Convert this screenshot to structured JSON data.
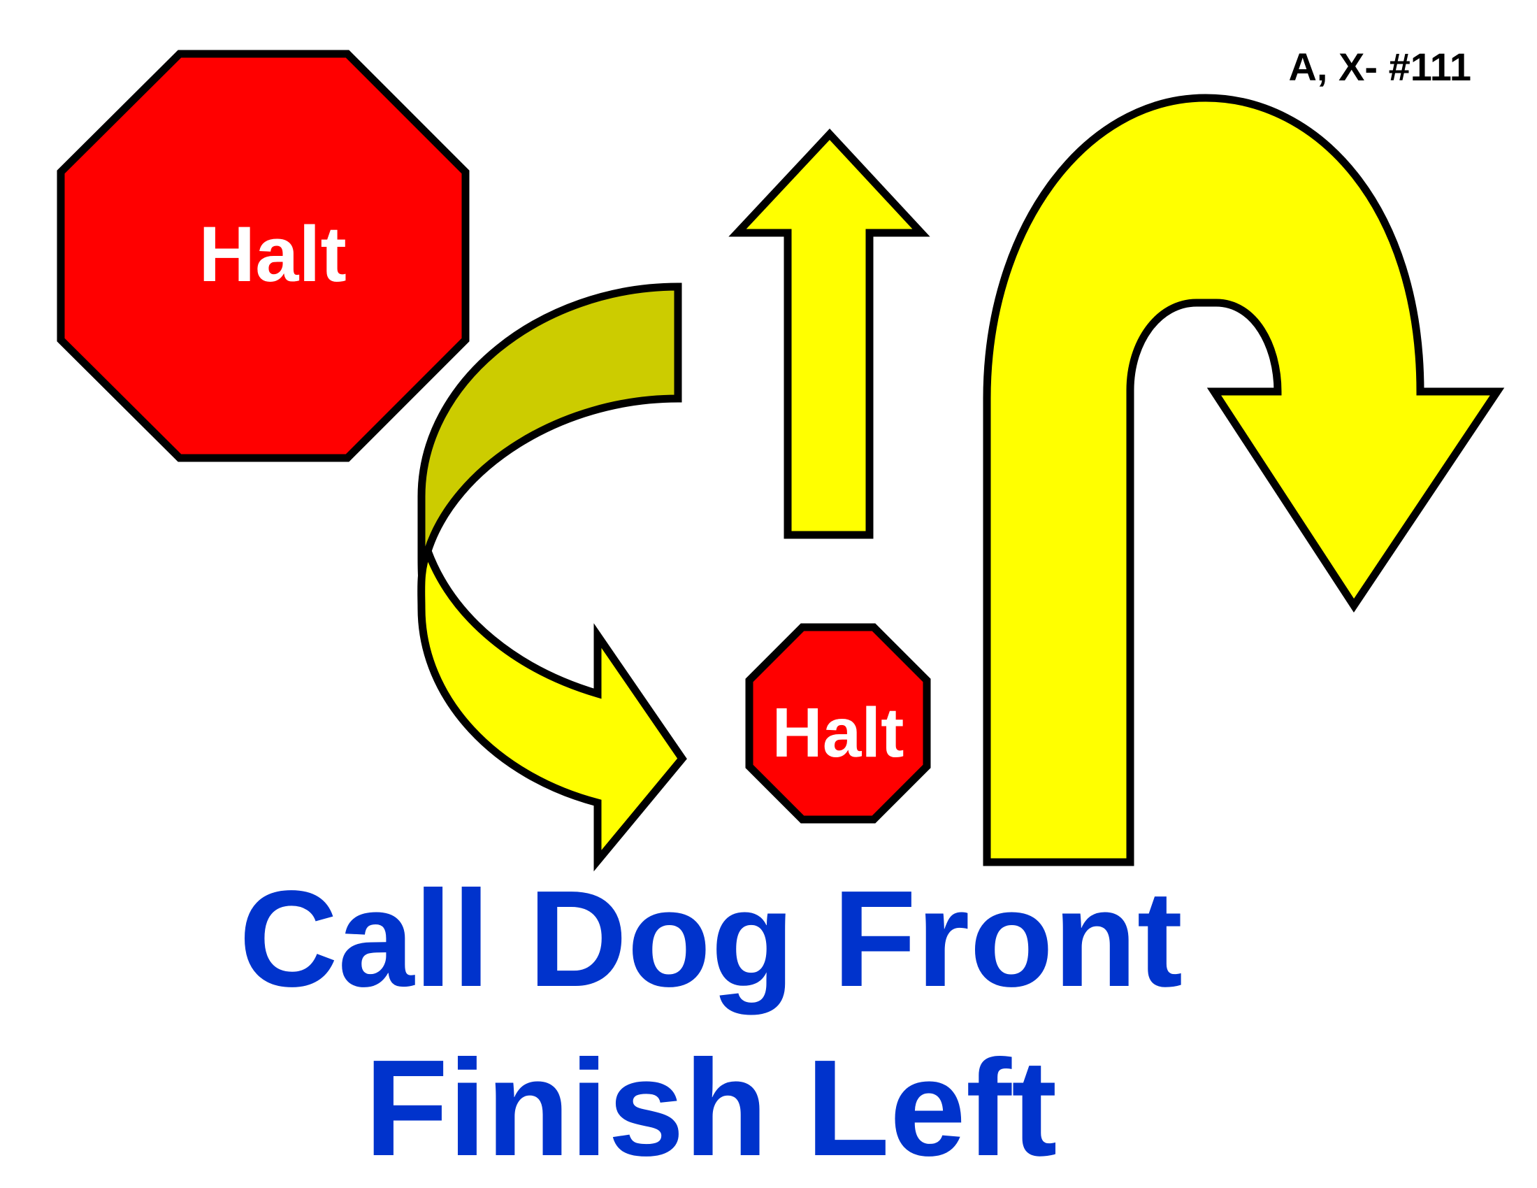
{
  "sign": {
    "id_label": "A, X- #111",
    "halt_large": "Halt",
    "halt_small": "Halt",
    "title_line1": "Call Dog Front",
    "title_line2": "Finish Left"
  },
  "colors": {
    "stop_sign": "#ff0000",
    "arrow": "#ffff00",
    "arrow_shadow": "#cccc00",
    "outline": "#000000",
    "title_text": "#0033cc",
    "halt_text": "#ffffff"
  },
  "icons": [
    "stop-sign-icon",
    "curved-arrow-icon",
    "straight-up-arrow-icon",
    "u-turn-arrow-icon"
  ]
}
